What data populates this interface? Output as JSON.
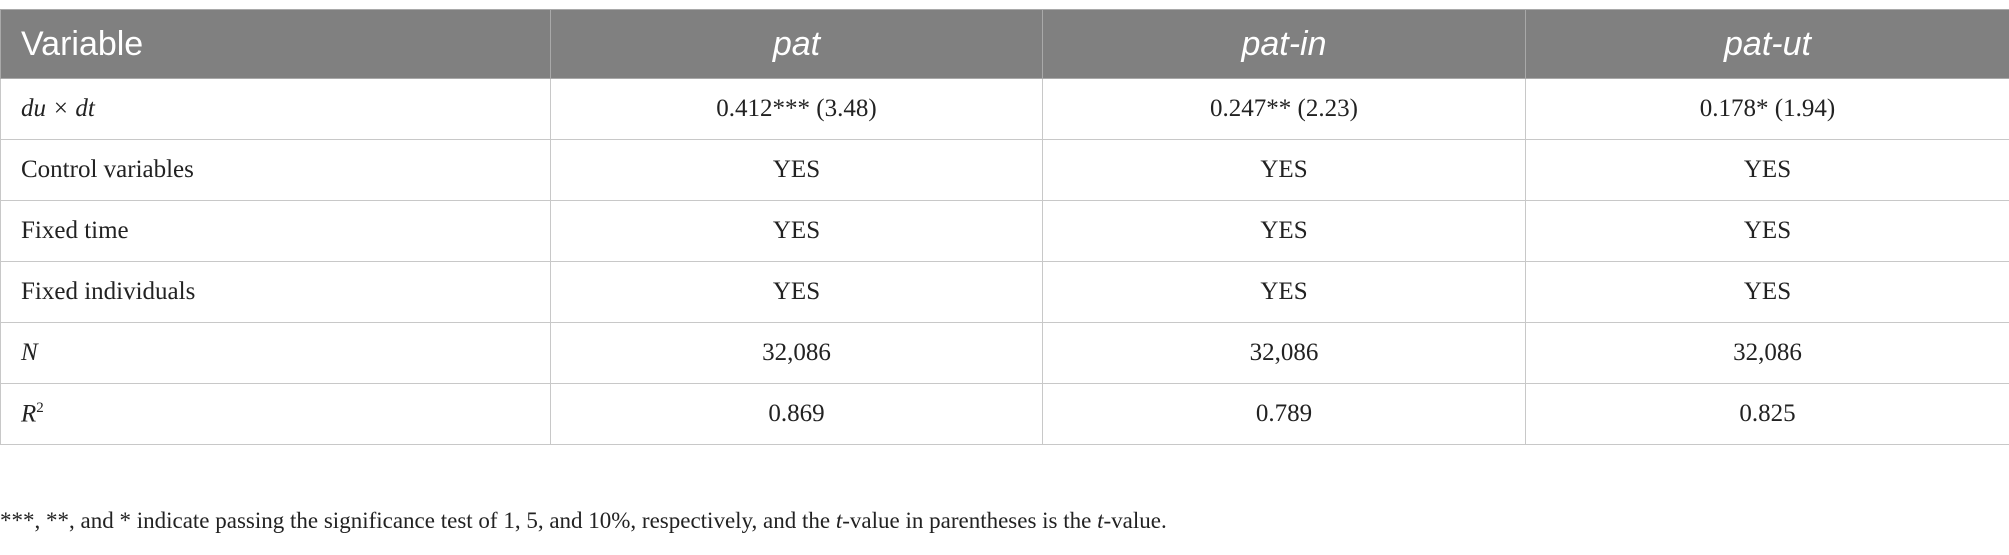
{
  "table": {
    "header": [
      "Variable",
      "pat",
      "pat-in",
      "pat-ut"
    ],
    "rows": [
      {
        "label": "du × dt",
        "cells": [
          "0.412*** (3.48)",
          "0.247** (2.23)",
          "0.178* (1.94)"
        ]
      },
      {
        "label": "Control variables",
        "cells": [
          "YES",
          "YES",
          "YES"
        ]
      },
      {
        "label": "Fixed time",
        "cells": [
          "YES",
          "YES",
          "YES"
        ]
      },
      {
        "label": "Fixed individuals",
        "cells": [
          "YES",
          "YES",
          "YES"
        ]
      },
      {
        "label": "N",
        "cells": [
          "32,086",
          "32,086",
          "32,086"
        ]
      },
      {
        "label": "R",
        "label_sup": "2",
        "cells": [
          "0.869",
          "0.789",
          "0.825"
        ]
      }
    ]
  },
  "footnote": [
    "***, **, and * indicate passing the significance test of 1, 5, and 10%, respectively, and the ",
    "t",
    "-value in parentheses is the ",
    "t",
    "-value."
  ]
}
